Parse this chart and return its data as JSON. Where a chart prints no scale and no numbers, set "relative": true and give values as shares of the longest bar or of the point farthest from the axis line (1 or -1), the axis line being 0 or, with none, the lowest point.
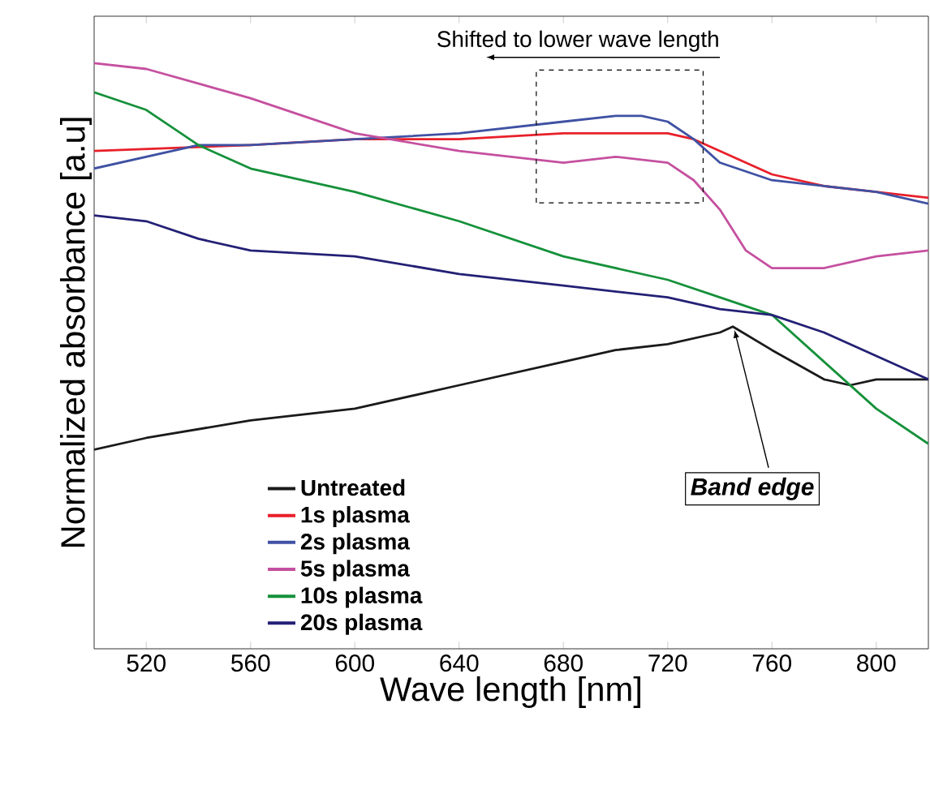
{
  "chart_data": {
    "type": "line",
    "relative": true,
    "xlabel": "Wave length [nm]",
    "ylabel": "Normalized absorbance [a.u]",
    "xlim": [
      500,
      820
    ],
    "xticks": [
      520,
      560,
      600,
      640,
      680,
      720,
      760,
      800
    ],
    "legend": "bottom left",
    "line_style": "solid",
    "annotations": [
      "Shifted to lower wave length",
      {
        "text": "Band edge",
        "x": 745,
        "y": 0.55
      }
    ],
    "series": [
      {
        "name": "Untreated",
        "color": "#1a1a1a",
        "x": [
          500,
          520,
          560,
          600,
          640,
          680,
          700,
          720,
          740,
          745,
          760,
          780,
          790,
          800,
          820
        ],
        "values": [
          0.34,
          0.36,
          0.39,
          0.41,
          0.45,
          0.49,
          0.51,
          0.52,
          0.54,
          0.55,
          0.51,
          0.46,
          0.45,
          0.46,
          0.46
        ]
      },
      {
        "name": "1s plasma",
        "color": "#e8202a",
        "x": [
          500,
          560,
          600,
          640,
          680,
          700,
          720,
          730,
          740,
          760,
          780,
          800,
          820
        ],
        "values": [
          0.85,
          0.86,
          0.87,
          0.87,
          0.88,
          0.88,
          0.88,
          0.87,
          0.85,
          0.81,
          0.79,
          0.78,
          0.77
        ]
      },
      {
        "name": "2s plasma",
        "color": "#3f51a3",
        "x": [
          500,
          540,
          560,
          600,
          640,
          680,
          700,
          710,
          720,
          730,
          740,
          760,
          780,
          800,
          820
        ],
        "values": [
          0.82,
          0.86,
          0.86,
          0.87,
          0.88,
          0.9,
          0.91,
          0.91,
          0.9,
          0.87,
          0.83,
          0.8,
          0.79,
          0.78,
          0.76
        ]
      },
      {
        "name": "5s plasma",
        "color": "#c5509f",
        "x": [
          500,
          520,
          560,
          600,
          640,
          680,
          700,
          720,
          730,
          740,
          750,
          760,
          780,
          800,
          820
        ],
        "values": [
          1.0,
          0.99,
          0.94,
          0.88,
          0.85,
          0.83,
          0.84,
          0.83,
          0.8,
          0.75,
          0.68,
          0.65,
          0.65,
          0.67,
          0.68
        ]
      },
      {
        "name": "10s plasma",
        "color": "#15913a",
        "x": [
          500,
          520,
          540,
          560,
          600,
          640,
          680,
          720,
          740,
          760,
          780,
          800,
          820
        ],
        "values": [
          0.95,
          0.92,
          0.86,
          0.82,
          0.78,
          0.73,
          0.67,
          0.63,
          0.6,
          0.57,
          0.49,
          0.41,
          0.35
        ]
      },
      {
        "name": "20s plasma",
        "color": "#232075",
        "x": [
          500,
          520,
          540,
          560,
          600,
          640,
          680,
          720,
          740,
          760,
          780,
          800,
          820
        ],
        "values": [
          0.74,
          0.73,
          0.7,
          0.68,
          0.67,
          0.64,
          0.62,
          0.6,
          0.58,
          0.57,
          0.54,
          0.5,
          0.46
        ]
      }
    ]
  }
}
